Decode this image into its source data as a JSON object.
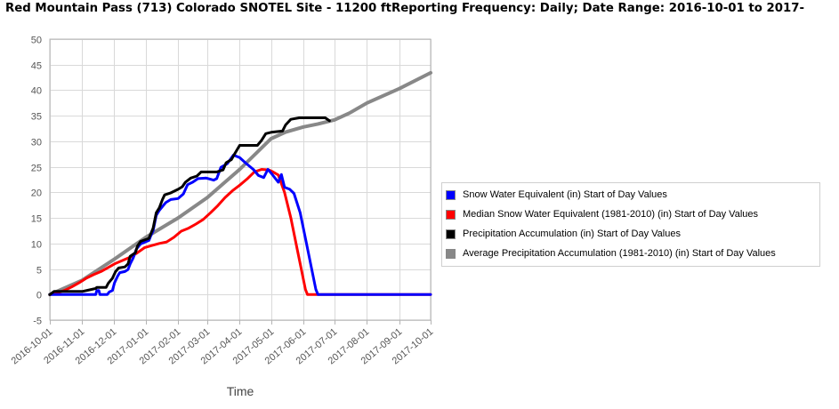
{
  "chart_data": {
    "type": "line",
    "title": "Red Mountain Pass (713) Colorado  SNOTEL Site - 11200 ftReporting Frequency: Daily; Date Range: 2016-10-01 to 2017-",
    "xlabel": "Time",
    "ylabel": "",
    "ylim": [
      -5,
      50
    ],
    "yticks": [
      -5,
      0,
      5,
      10,
      15,
      20,
      25,
      30,
      35,
      40,
      45,
      50
    ],
    "xlim": [
      "2016-10-01",
      "2017-10-01"
    ],
    "xticks": [
      "2016-10-01",
      "2016-11-01",
      "2016-12-01",
      "2017-01-01",
      "2017-02-01",
      "2017-03-01",
      "2017-04-01",
      "2017-05-01",
      "2017-06-01",
      "2017-07-01",
      "2017-08-01",
      "2017-09-01",
      "2017-10-01"
    ],
    "grid": true,
    "legend_position": "right",
    "series": [
      {
        "name": "Snow Water Equivalent (in) Start of Day Values",
        "color": "#0000ff",
        "points": [
          [
            "2016-10-01",
            0
          ],
          [
            "2016-11-10",
            0
          ],
          [
            "2016-11-14",
            0
          ],
          [
            "2016-11-15",
            0.8
          ],
          [
            "2016-11-17",
            0.8
          ],
          [
            "2016-11-18",
            0
          ],
          [
            "2016-11-25",
            0
          ],
          [
            "2016-11-27",
            0.5
          ],
          [
            "2016-11-30",
            0.8
          ],
          [
            "2016-12-02",
            2.3
          ],
          [
            "2016-12-05",
            3.6
          ],
          [
            "2016-12-07",
            4.3
          ],
          [
            "2016-12-12",
            4.5
          ],
          [
            "2016-12-15",
            4.9
          ],
          [
            "2016-12-17",
            6.0
          ],
          [
            "2016-12-20",
            7.2
          ],
          [
            "2016-12-23",
            8.9
          ],
          [
            "2016-12-27",
            9.9
          ],
          [
            "2017-01-04",
            10.6
          ],
          [
            "2017-01-06",
            11.6
          ],
          [
            "2017-01-08",
            12.5
          ],
          [
            "2017-01-11",
            15.5
          ],
          [
            "2017-01-14",
            16.5
          ],
          [
            "2017-01-20",
            18.0
          ],
          [
            "2017-01-25",
            18.6
          ],
          [
            "2017-02-01",
            18.8
          ],
          [
            "2017-02-06",
            19.7
          ],
          [
            "2017-02-10",
            21.5
          ],
          [
            "2017-02-15",
            22.0
          ],
          [
            "2017-02-20",
            22.7
          ],
          [
            "2017-02-28",
            22.8
          ],
          [
            "2017-03-07",
            22.4
          ],
          [
            "2017-03-10",
            22.7
          ],
          [
            "2017-03-14",
            24.9
          ],
          [
            "2017-03-20",
            25.6
          ],
          [
            "2017-03-26",
            27.3
          ],
          [
            "2017-04-01",
            26.8
          ],
          [
            "2017-04-07",
            25.7
          ],
          [
            "2017-04-14",
            24.5
          ],
          [
            "2017-04-19",
            23.3
          ],
          [
            "2017-04-24",
            22.9
          ],
          [
            "2017-04-28",
            24.5
          ],
          [
            "2017-05-01",
            23.8
          ],
          [
            "2017-05-08",
            22.0
          ],
          [
            "2017-05-11",
            23.5
          ],
          [
            "2017-05-14",
            21.0
          ],
          [
            "2017-05-19",
            20.6
          ],
          [
            "2017-05-23",
            19.8
          ],
          [
            "2017-05-29",
            16.0
          ],
          [
            "2017-06-03",
            11.0
          ],
          [
            "2017-06-09",
            5.0
          ],
          [
            "2017-06-13",
            1.0
          ],
          [
            "2017-06-15",
            0
          ],
          [
            "2017-10-01",
            0
          ]
        ]
      },
      {
        "name": "Median Snow Water Equivalent (1981-2010) (in) Start of Day Values",
        "color": "#ff0000",
        "points": [
          [
            "2016-10-01",
            0
          ],
          [
            "2016-10-08",
            0.3
          ],
          [
            "2016-10-15",
            0.8
          ],
          [
            "2016-10-22",
            1.5
          ],
          [
            "2016-10-29",
            2.3
          ],
          [
            "2016-11-05",
            3.2
          ],
          [
            "2016-11-12",
            3.9
          ],
          [
            "2016-11-19",
            4.5
          ],
          [
            "2016-11-26",
            5.3
          ],
          [
            "2016-12-03",
            6.1
          ],
          [
            "2016-12-10",
            6.7
          ],
          [
            "2016-12-17",
            7.3
          ],
          [
            "2016-12-24",
            8.2
          ],
          [
            "2016-12-31",
            9.2
          ],
          [
            "2017-01-07",
            9.6
          ],
          [
            "2017-01-14",
            10.0
          ],
          [
            "2017-01-21",
            10.3
          ],
          [
            "2017-01-28",
            11.2
          ],
          [
            "2017-02-04",
            12.4
          ],
          [
            "2017-02-11",
            13.0
          ],
          [
            "2017-02-18",
            13.8
          ],
          [
            "2017-02-25",
            14.7
          ],
          [
            "2017-03-04",
            16.0
          ],
          [
            "2017-03-11",
            17.4
          ],
          [
            "2017-03-18",
            19.0
          ],
          [
            "2017-03-25",
            20.3
          ],
          [
            "2017-04-01",
            21.4
          ],
          [
            "2017-04-08",
            22.6
          ],
          [
            "2017-04-15",
            24.0
          ],
          [
            "2017-04-22",
            24.5
          ],
          [
            "2017-04-29",
            24.4
          ],
          [
            "2017-05-03",
            24.0
          ],
          [
            "2017-05-08",
            23.4
          ],
          [
            "2017-05-14",
            20.0
          ],
          [
            "2017-05-20",
            15.0
          ],
          [
            "2017-05-26",
            9.0
          ],
          [
            "2017-05-30",
            5.0
          ],
          [
            "2017-06-03",
            1.0
          ],
          [
            "2017-06-05",
            0
          ],
          [
            "2017-10-01",
            0
          ]
        ]
      },
      {
        "name": "Precipitation Accumulation (in) Start of Day Values",
        "color": "#000000",
        "points": [
          [
            "2016-10-01",
            0
          ],
          [
            "2016-10-05",
            0.6
          ],
          [
            "2016-11-01",
            0.6
          ],
          [
            "2016-11-10",
            1.0
          ],
          [
            "2016-11-14",
            1.2
          ],
          [
            "2016-11-15",
            1.4
          ],
          [
            "2016-11-24",
            1.4
          ],
          [
            "2016-11-26",
            2.2
          ],
          [
            "2016-11-30",
            3.2
          ],
          [
            "2016-12-03",
            4.5
          ],
          [
            "2016-12-06",
            5.2
          ],
          [
            "2016-12-12",
            5.4
          ],
          [
            "2016-12-15",
            6.0
          ],
          [
            "2016-12-17",
            7.5
          ],
          [
            "2016-12-22",
            8.2
          ],
          [
            "2016-12-24",
            9.5
          ],
          [
            "2016-12-27",
            10.4
          ],
          [
            "2017-01-04",
            11.0
          ],
          [
            "2017-01-08",
            13.0
          ],
          [
            "2017-01-11",
            16.0
          ],
          [
            "2017-01-14",
            17.0
          ],
          [
            "2017-01-17",
            18.6
          ],
          [
            "2017-01-19",
            19.5
          ],
          [
            "2017-01-25",
            19.9
          ],
          [
            "2017-02-01",
            20.6
          ],
          [
            "2017-02-05",
            21.1
          ],
          [
            "2017-02-08",
            22.0
          ],
          [
            "2017-02-13",
            22.8
          ],
          [
            "2017-02-19",
            23.2
          ],
          [
            "2017-02-23",
            24.0
          ],
          [
            "2017-03-10",
            24.0
          ],
          [
            "2017-03-16",
            24.4
          ],
          [
            "2017-03-19",
            25.8
          ],
          [
            "2017-03-24",
            26.4
          ],
          [
            "2017-03-27",
            27.5
          ],
          [
            "2017-04-01",
            29.2
          ],
          [
            "2017-04-18",
            29.2
          ],
          [
            "2017-04-22",
            30.2
          ],
          [
            "2017-04-26",
            31.5
          ],
          [
            "2017-05-02",
            31.8
          ],
          [
            "2017-05-12",
            32.0
          ],
          [
            "2017-05-15",
            33.2
          ],
          [
            "2017-05-20",
            34.3
          ],
          [
            "2017-05-28",
            34.6
          ],
          [
            "2017-06-22",
            34.6
          ],
          [
            "2017-06-26",
            34.0
          ]
        ]
      },
      {
        "name": "Average Precipitation Accumulation (1981-2010) (in) Start of Day Values",
        "color": "#888888",
        "points": [
          [
            "2016-10-01",
            0
          ],
          [
            "2016-11-01",
            2.8
          ],
          [
            "2016-12-01",
            6.8
          ],
          [
            "2017-01-01",
            11.2
          ],
          [
            "2017-02-01",
            15.0
          ],
          [
            "2017-03-01",
            19.0
          ],
          [
            "2017-04-01",
            24.5
          ],
          [
            "2017-05-01",
            30.5
          ],
          [
            "2017-05-15",
            31.8
          ],
          [
            "2017-06-01",
            32.8
          ],
          [
            "2017-06-15",
            33.4
          ],
          [
            "2017-07-01",
            34.2
          ],
          [
            "2017-07-15",
            35.5
          ],
          [
            "2017-08-01",
            37.5
          ],
          [
            "2017-09-01",
            40.3
          ],
          [
            "2017-10-01",
            43.4
          ]
        ]
      }
    ]
  },
  "legend": {
    "items": [
      {
        "label": "Snow Water Equivalent (in) Start of Day Values",
        "color": "#0000ff"
      },
      {
        "label": "Median Snow Water Equivalent (1981-2010) (in) Start of Day Values",
        "color": "#ff0000"
      },
      {
        "label": "Precipitation Accumulation (in) Start of Day Values",
        "color": "#000000"
      },
      {
        "label": "Average Precipitation Accumulation (1981-2010) (in) Start of Day Values",
        "color": "#888888"
      }
    ]
  }
}
